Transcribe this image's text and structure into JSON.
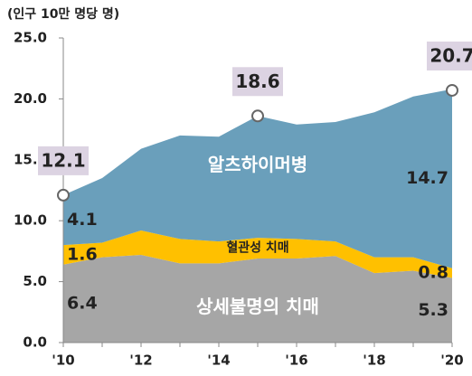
{
  "chart_data": {
    "type": "stacked_area",
    "y_label": "(인구 10만 명당 명)",
    "categories": [
      "'10",
      null,
      "'12",
      null,
      "'14",
      null,
      "'16",
      null,
      "'18",
      null,
      "'20"
    ],
    "series": [
      {
        "name": "상세불명의 치매",
        "color": "#a6a6a6",
        "values": [
          6.4,
          7.0,
          7.2,
          6.5,
          6.5,
          6.9,
          6.9,
          7.1,
          5.7,
          5.9,
          5.3
        ],
        "value_labels": [
          "6.4",
          null,
          null,
          null,
          null,
          null,
          null,
          null,
          null,
          null,
          "5.3"
        ]
      },
      {
        "name": "혈관성 치매",
        "color": "#ffc000",
        "values": [
          1.6,
          1.2,
          2.0,
          2.0,
          1.8,
          1.7,
          1.6,
          1.2,
          1.3,
          1.1,
          0.8
        ],
        "value_labels": [
          "1.6",
          null,
          null,
          null,
          null,
          null,
          null,
          null,
          null,
          null,
          "0.8"
        ]
      },
      {
        "name": "알츠하이머병",
        "color": "#6a9fbb",
        "values": [
          4.1,
          5.3,
          6.7,
          8.5,
          8.6,
          10.0,
          9.4,
          9.8,
          11.9,
          13.2,
          14.7
        ],
        "value_labels": [
          "4.1",
          null,
          null,
          null,
          null,
          null,
          null,
          null,
          null,
          null,
          "14.7"
        ]
      }
    ],
    "totals": {
      "values": [
        12.1,
        null,
        null,
        null,
        null,
        18.6,
        null,
        null,
        null,
        null,
        20.7
      ],
      "value_labels": [
        "12.1",
        null,
        null,
        null,
        null,
        "18.6",
        null,
        null,
        null,
        null,
        "20.7"
      ]
    },
    "ylim": [
      0,
      25
    ],
    "yticks": [
      {
        "value": 0,
        "label": "0.0"
      },
      {
        "value": 5,
        "label": "5.0"
      },
      {
        "value": 10,
        "label": "10.0"
      },
      {
        "value": 15,
        "label": "15.0"
      },
      {
        "value": 20,
        "label": "20.0"
      },
      {
        "value": 25,
        "label": "25.0"
      }
    ]
  }
}
